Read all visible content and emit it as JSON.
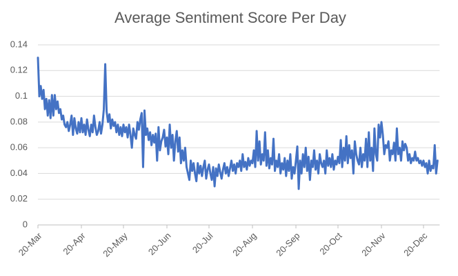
{
  "chart_data": {
    "type": "line",
    "title": "Average Sentiment Score Per Day",
    "categories": [
      "20-Mar",
      null,
      null,
      null,
      null,
      null,
      null,
      null,
      null,
      null,
      null,
      null,
      null,
      null,
      null,
      null,
      null,
      null,
      null,
      null,
      null,
      null,
      null,
      null,
      null,
      null,
      null,
      null,
      null,
      null,
      null,
      "20-Apr",
      null,
      null,
      null,
      null,
      null,
      null,
      null,
      null,
      null,
      null,
      null,
      null,
      null,
      null,
      null,
      null,
      null,
      null,
      null,
      null,
      null,
      null,
      null,
      null,
      null,
      null,
      null,
      null,
      null,
      "20-May",
      null,
      null,
      null,
      null,
      null,
      null,
      null,
      null,
      null,
      null,
      null,
      null,
      null,
      null,
      null,
      null,
      null,
      null,
      null,
      null,
      null,
      null,
      null,
      null,
      null,
      null,
      null,
      null,
      null,
      null,
      "20-Jun",
      null,
      null,
      null,
      null,
      null,
      null,
      null,
      null,
      null,
      null,
      null,
      null,
      null,
      null,
      null,
      null,
      null,
      null,
      null,
      null,
      null,
      null,
      null,
      null,
      null,
      null,
      null,
      null,
      null,
      "20-Jul",
      null,
      null,
      null,
      null,
      null,
      null,
      null,
      null,
      null,
      null,
      null,
      null,
      null,
      null,
      null,
      null,
      null,
      null,
      null,
      null,
      null,
      null,
      null,
      null,
      null,
      null,
      null,
      null,
      null,
      null,
      "20-Aug",
      null,
      null,
      null,
      null,
      null,
      null,
      null,
      null,
      null,
      null,
      null,
      null,
      null,
      null,
      null,
      null,
      null,
      null,
      null,
      null,
      null,
      null,
      null,
      null,
      null,
      null,
      null,
      null,
      null,
      null,
      "20-Sep",
      null,
      null,
      null,
      null,
      null,
      null,
      null,
      null,
      null,
      null,
      null,
      null,
      null,
      null,
      null,
      null,
      null,
      null,
      null,
      null,
      null,
      null,
      null,
      null,
      null,
      null,
      null,
      null,
      null,
      "20-Oct",
      null,
      null,
      null,
      null,
      null,
      null,
      null,
      null,
      null,
      null,
      null,
      null,
      null,
      null,
      null,
      null,
      null,
      null,
      null,
      null,
      null,
      null,
      null,
      null,
      null,
      null,
      null,
      null,
      null,
      null,
      "20-Nov",
      null,
      null,
      null,
      null,
      null,
      null,
      null,
      null,
      null,
      null,
      null,
      null,
      null,
      null,
      null,
      null,
      null,
      null,
      null,
      null,
      null,
      null,
      null,
      null,
      null,
      null,
      null,
      null,
      null,
      "20-Dec",
      null,
      null,
      null,
      null,
      null,
      null,
      null,
      null,
      null,
      null
    ],
    "values": [
      0.13,
      0.1,
      0.108,
      0.098,
      0.105,
      0.09,
      0.098,
      0.085,
      0.097,
      0.083,
      0.101,
      0.085,
      0.101,
      0.09,
      0.096,
      0.087,
      0.09,
      0.082,
      0.085,
      0.078,
      0.076,
      0.08,
      0.073,
      0.078,
      0.085,
      0.07,
      0.083,
      0.075,
      0.071,
      0.08,
      0.072,
      0.083,
      0.072,
      0.078,
      0.07,
      0.082,
      0.074,
      0.069,
      0.078,
      0.072,
      0.085,
      0.076,
      0.07,
      0.073,
      0.08,
      0.071,
      0.078,
      0.09,
      0.125,
      0.088,
      0.08,
      0.086,
      0.075,
      0.082,
      0.077,
      0.08,
      0.072,
      0.078,
      0.07,
      0.076,
      0.069,
      0.078,
      0.072,
      0.076,
      0.068,
      0.078,
      0.07,
      0.06,
      0.075,
      0.07,
      0.067,
      0.08,
      0.074,
      0.082,
      0.087,
      0.045,
      0.089,
      0.07,
      0.075,
      0.066,
      0.072,
      0.062,
      0.07,
      0.064,
      0.071,
      0.05,
      0.076,
      0.058,
      0.065,
      0.068,
      0.074,
      0.061,
      0.068,
      0.055,
      0.078,
      0.06,
      0.07,
      0.05,
      0.065,
      0.073,
      0.057,
      0.068,
      0.048,
      0.058,
      0.05,
      0.06,
      0.045,
      0.04,
      0.035,
      0.05,
      0.042,
      0.048,
      0.04,
      0.034,
      0.048,
      0.04,
      0.046,
      0.038,
      0.045,
      0.05,
      0.036,
      0.043,
      0.047,
      0.04,
      0.035,
      0.045,
      0.03,
      0.044,
      0.038,
      0.047,
      0.041,
      0.036,
      0.043,
      0.048,
      0.04,
      0.045,
      0.038,
      0.044,
      0.05,
      0.042,
      0.047,
      0.04,
      0.048,
      0.045,
      0.05,
      0.042,
      0.055,
      0.045,
      0.049,
      0.043,
      0.052,
      0.046,
      0.05,
      0.048,
      0.058,
      0.045,
      0.073,
      0.05,
      0.065,
      0.047,
      0.055,
      0.05,
      0.072,
      0.046,
      0.058,
      0.044,
      0.052,
      0.047,
      0.067,
      0.042,
      0.05,
      0.045,
      0.055,
      0.04,
      0.048,
      0.043,
      0.052,
      0.038,
      0.05,
      0.042,
      0.055,
      0.036,
      0.045,
      0.04,
      0.05,
      0.061,
      0.028,
      0.05,
      0.04,
      0.055,
      0.045,
      0.06,
      0.042,
      0.053,
      0.035,
      0.05,
      0.045,
      0.058,
      0.043,
      0.05,
      0.04,
      0.055,
      0.048,
      0.045,
      0.05,
      0.04,
      0.058,
      0.046,
      0.052,
      0.045,
      0.055,
      0.043,
      0.05,
      0.047,
      0.053,
      0.048,
      0.066,
      0.045,
      0.06,
      0.05,
      0.069,
      0.048,
      0.062,
      0.052,
      0.058,
      0.04,
      0.065,
      0.055,
      0.05,
      0.047,
      0.06,
      0.045,
      0.055,
      0.05,
      0.067,
      0.045,
      0.072,
      0.05,
      0.06,
      0.042,
      0.075,
      0.055,
      0.05,
      0.078,
      0.068,
      0.08,
      0.07,
      0.055,
      0.062,
      0.06,
      0.065,
      0.05,
      0.058,
      0.055,
      0.064,
      0.05,
      0.075,
      0.055,
      0.06,
      0.05,
      0.065,
      0.058,
      0.063,
      0.06,
      0.05,
      0.055,
      0.048,
      0.052,
      0.05,
      0.057,
      0.05,
      0.052,
      0.048,
      0.05,
      0.046,
      0.05,
      0.045,
      0.048,
      0.04,
      0.05,
      0.042,
      0.046,
      0.044,
      0.062,
      0.04,
      0.05
    ],
    "color": "#4472c4",
    "ylim": [
      0,
      0.14
    ],
    "yticks": [
      0,
      0.02,
      0.04,
      0.06,
      0.08,
      0.1,
      0.12,
      0.14
    ],
    "grid": true
  }
}
